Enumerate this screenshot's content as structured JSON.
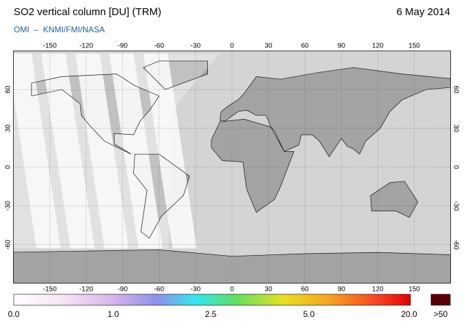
{
  "header": {
    "title": "SO2 vertical column [DU] (TRM)",
    "date": "6 May 2014",
    "source": "OMI  –  KNMI/FMI/NASA"
  },
  "map": {
    "lon_ticks": [
      -150,
      -120,
      -90,
      -60,
      -30,
      0,
      30,
      60,
      90,
      120,
      150
    ],
    "lat_ticks": [
      60,
      30,
      0,
      -30,
      -60
    ]
  },
  "colorbar": {
    "labels": [
      "0.0",
      "1.0",
      "2.5",
      "5.0",
      "20.0",
      ">50"
    ]
  }
}
